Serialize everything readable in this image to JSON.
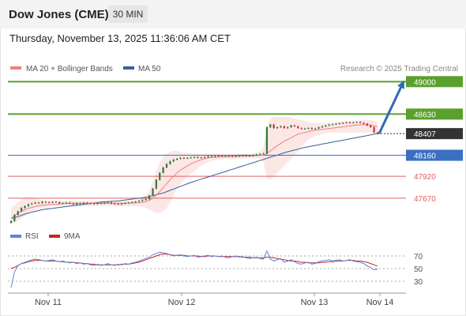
{
  "header": {
    "symbol": "Dow Jones (CME)",
    "timeframe": "30 MIN",
    "datetime": "Thursday, November 13, 2025 11:36:06 AM CET"
  },
  "colors": {
    "resistance": "#5aa02c",
    "support": "#3a6fc4",
    "pivot": "#2b4a8a",
    "level_red": "#e06060",
    "current": "#333333",
    "ma20": "#f08080",
    "band": "#fbe3e3",
    "ma50": "#3b5f9a",
    "candle_up": "#2f7a3a",
    "candle_down": "#c83232",
    "rsi": "#5b86d6",
    "rsi_ma": "#cc2222",
    "arrow": "#2e6bb5"
  },
  "chart_data": [
    {
      "type": "candlestick",
      "legend": [
        {
          "name": "MA 20 + Bollinger Bands",
          "color": "#f08080"
        },
        {
          "name": "MA 50",
          "color": "#3b5f9a"
        }
      ],
      "watermark": "Research © 2025 Trading Central",
      "x_labels": [
        "Nov 11",
        "Nov 12",
        "Nov 13",
        "Nov 14"
      ],
      "ylim": [
        47390,
        49030
      ],
      "levels": [
        {
          "label": "49000",
          "value": 49000,
          "kind": "resistance"
        },
        {
          "label": "48630",
          "value": 48630,
          "kind": "resistance"
        },
        {
          "label": "48407",
          "value": 48407,
          "kind": "current"
        },
        {
          "label": "48160",
          "value": 48160,
          "kind": "pivot"
        },
        {
          "label": "47920",
          "value": 47920,
          "kind": "red"
        },
        {
          "label": "47670",
          "value": 47670,
          "kind": "red"
        }
      ],
      "close": [
        47410,
        47480,
        47520,
        47560,
        47580,
        47600,
        47610,
        47620,
        47615,
        47630,
        47625,
        47620,
        47630,
        47625,
        47610,
        47615,
        47620,
        47610,
        47600,
        47615,
        47610,
        47620,
        47615,
        47610,
        47605,
        47615,
        47610,
        47620,
        47625,
        47610,
        47605,
        47600,
        47610,
        47615,
        47620,
        47625,
        47630,
        47640,
        47650,
        47660,
        47700,
        47780,
        47880,
        47960,
        48020,
        48060,
        48090,
        48110,
        48120,
        48130,
        48125,
        48130,
        48135,
        48140,
        48130,
        48135,
        48140,
        48150,
        48145,
        48150,
        48155,
        48150,
        48150,
        48150,
        48145,
        48150,
        48155,
        48160,
        48150,
        48155,
        48160,
        48170,
        48175,
        48180,
        48480,
        48510,
        48470,
        48480,
        48490,
        48470,
        48480,
        48500,
        48490,
        48470,
        48460,
        48465,
        48470,
        48460,
        48465,
        48480,
        48490,
        48500,
        48510,
        48515,
        48520,
        48525,
        48530,
        48535,
        48530,
        48535,
        48540,
        48530,
        48520,
        48500,
        48480,
        48420,
        48407
      ],
      "ma20": [
        47440,
        47470,
        47500,
        47520,
        47540,
        47555,
        47565,
        47575,
        47585,
        47590,
        47595,
        47598,
        47600,
        47600,
        47605,
        47608,
        47610,
        47612,
        47614,
        47613,
        47612,
        47611,
        47612,
        47612,
        47612,
        47612,
        47612,
        47612,
        47612,
        47612,
        47612,
        47612,
        47612,
        47613,
        47614,
        47615,
        47617,
        47620,
        47624,
        47630,
        47645,
        47670,
        47705,
        47745,
        47790,
        47835,
        47880,
        47920,
        47960,
        47990,
        48015,
        48040,
        48060,
        48080,
        48095,
        48110,
        48120,
        48130,
        48135,
        48138,
        48141,
        48143,
        48145,
        48147,
        48148,
        48149,
        48150,
        48151,
        48152,
        48153,
        48154,
        48156,
        48158,
        48160,
        48180,
        48210,
        48240,
        48270,
        48295,
        48320,
        48340,
        48360,
        48380,
        48400,
        48410,
        48420,
        48430,
        48440,
        48445,
        48450,
        48455,
        48460,
        48465,
        48470,
        48475,
        48480,
        48485,
        48490,
        48495,
        48500,
        48505,
        48508,
        48510,
        48510,
        48505,
        48495,
        48485
      ],
      "bb_upper": [
        47560,
        47590,
        47620,
        47660,
        47680,
        47690,
        47680,
        47670,
        47660,
        47650,
        47640,
        47640,
        47640,
        47640,
        47640,
        47640,
        47640,
        47640,
        47640,
        47640,
        47640,
        47640,
        47640,
        47640,
        47640,
        47640,
        47640,
        47640,
        47640,
        47640,
        47640,
        47640,
        47640,
        47640,
        47640,
        47640,
        47650,
        47660,
        47680,
        47700,
        47760,
        47860,
        47980,
        48080,
        48140,
        48180,
        48200,
        48210,
        48210,
        48200,
        48190,
        48185,
        48180,
        48180,
        48175,
        48175,
        48175,
        48175,
        48175,
        48175,
        48175,
        48175,
        48175,
        48175,
        48175,
        48175,
        48175,
        48180,
        48180,
        48180,
        48180,
        48190,
        48200,
        48250,
        48480,
        48580,
        48600,
        48600,
        48600,
        48600,
        48600,
        48590,
        48580,
        48570,
        48560,
        48550,
        48540,
        48530,
        48530,
        48530,
        48530,
        48530,
        48530,
        48530,
        48540,
        48540,
        48540,
        48550,
        48550,
        48550,
        48560,
        48560,
        48560,
        48560,
        48560,
        48550,
        48540
      ],
      "bb_lower": [
        47380,
        47390,
        47410,
        47440,
        47460,
        47490,
        47510,
        47530,
        47550,
        47560,
        47570,
        47575,
        47580,
        47580,
        47580,
        47580,
        47580,
        47580,
        47580,
        47580,
        47580,
        47580,
        47580,
        47580,
        47580,
        47580,
        47580,
        47580,
        47580,
        47580,
        47580,
        47580,
        47580,
        47580,
        47580,
        47580,
        47580,
        47580,
        47570,
        47560,
        47540,
        47520,
        47500,
        47500,
        47520,
        47560,
        47620,
        47700,
        47780,
        47840,
        47880,
        47920,
        47950,
        47980,
        48010,
        48040,
        48060,
        48080,
        48095,
        48105,
        48110,
        48115,
        48120,
        48120,
        48120,
        48120,
        48120,
        48120,
        48125,
        48125,
        48125,
        48125,
        48120,
        48080,
        47900,
        47880,
        47920,
        47960,
        48000,
        48040,
        48080,
        48120,
        48160,
        48200,
        48250,
        48300,
        48340,
        48360,
        48380,
        48390,
        48400,
        48410,
        48420,
        48420,
        48420,
        48420,
        48420,
        48420,
        48420,
        48420,
        48420,
        48420,
        48420,
        48420,
        48420,
        48420,
        48420
      ],
      "ma50": [
        47440,
        47450,
        47460,
        47475,
        47490,
        47500,
        47510,
        47520,
        47530,
        47540,
        47545,
        47550,
        47555,
        47560,
        47565,
        47570,
        47575,
        47580,
        47585,
        47590,
        47595,
        47600,
        47605,
        47610,
        47615,
        47620,
        47625,
        47630,
        47632,
        47635,
        47637,
        47640,
        47645,
        47650,
        47655,
        47660,
        47665,
        47670,
        47675,
        47680,
        47690,
        47700,
        47710,
        47720,
        47730,
        47745,
        47760,
        47775,
        47790,
        47805,
        47820,
        47835,
        47850,
        47862,
        47875,
        47888,
        47900,
        47912,
        47925,
        47938,
        47950,
        47962,
        47975,
        47988,
        48000,
        48012,
        48025,
        48038,
        48050,
        48062,
        48075,
        48088,
        48100,
        48112,
        48125,
        48138,
        48150,
        48162,
        48175,
        48188,
        48200,
        48210,
        48220,
        48230,
        48240,
        48250,
        48258,
        48265,
        48272,
        48280,
        48288,
        48295,
        48302,
        48310,
        48318,
        48325,
        48332,
        48340,
        48347,
        48355,
        48362,
        48370,
        48377,
        48385,
        48392,
        48400,
        48407
      ]
    },
    {
      "type": "line",
      "series": [
        {
          "name": "RSI",
          "color": "#5b86d6"
        },
        {
          "name": "9MA",
          "color": "#cc2222"
        }
      ],
      "ylim": [
        15,
        85
      ],
      "levels": [
        70,
        50,
        30
      ],
      "tick_labels": [
        "70",
        "50",
        "30"
      ],
      "rsi": [
        20,
        45,
        55,
        58,
        60,
        62,
        64,
        65,
        64,
        63,
        62,
        63,
        64,
        62,
        61,
        62,
        60,
        59,
        60,
        58,
        59,
        57,
        58,
        56,
        55,
        57,
        55,
        56,
        58,
        56,
        55,
        57,
        56,
        58,
        57,
        59,
        60,
        62,
        64,
        66,
        68,
        72,
        74,
        76,
        75,
        74,
        72,
        70,
        71,
        72,
        70,
        69,
        70,
        71,
        68,
        69,
        70,
        71,
        69,
        70,
        69,
        70,
        68,
        67,
        69,
        70,
        68,
        69,
        67,
        66,
        67,
        68,
        66,
        65,
        78,
        65,
        62,
        64,
        66,
        60,
        62,
        64,
        61,
        58,
        57,
        59,
        60,
        57,
        58,
        61,
        62,
        63,
        64,
        62,
        63,
        64,
        62,
        63,
        64,
        62,
        61,
        60,
        58,
        54,
        52,
        48,
        49
      ],
      "rsi_ma": [
        50,
        52,
        55,
        58,
        59,
        61,
        62,
        63,
        63,
        63,
        62,
        62,
        62,
        62,
        61,
        61,
        60,
        60,
        60,
        59,
        59,
        58,
        58,
        57,
        57,
        56,
        56,
        56,
        56,
        56,
        56,
        56,
        57,
        57,
        57,
        58,
        59,
        60,
        62,
        64,
        66,
        68,
        70,
        72,
        73,
        73,
        72,
        71,
        71,
        71,
        71,
        70,
        70,
        70,
        70,
        69,
        69,
        70,
        70,
        70,
        69,
        69,
        69,
        69,
        69,
        69,
        69,
        68,
        68,
        68,
        67,
        67,
        67,
        67,
        68,
        68,
        67,
        66,
        65,
        64,
        63,
        62,
        62,
        61,
        60,
        60,
        59,
        59,
        59,
        59,
        60,
        60,
        61,
        61,
        62,
        62,
        62,
        63,
        63,
        63,
        62,
        62,
        61,
        60,
        58,
        56,
        54
      ]
    }
  ]
}
